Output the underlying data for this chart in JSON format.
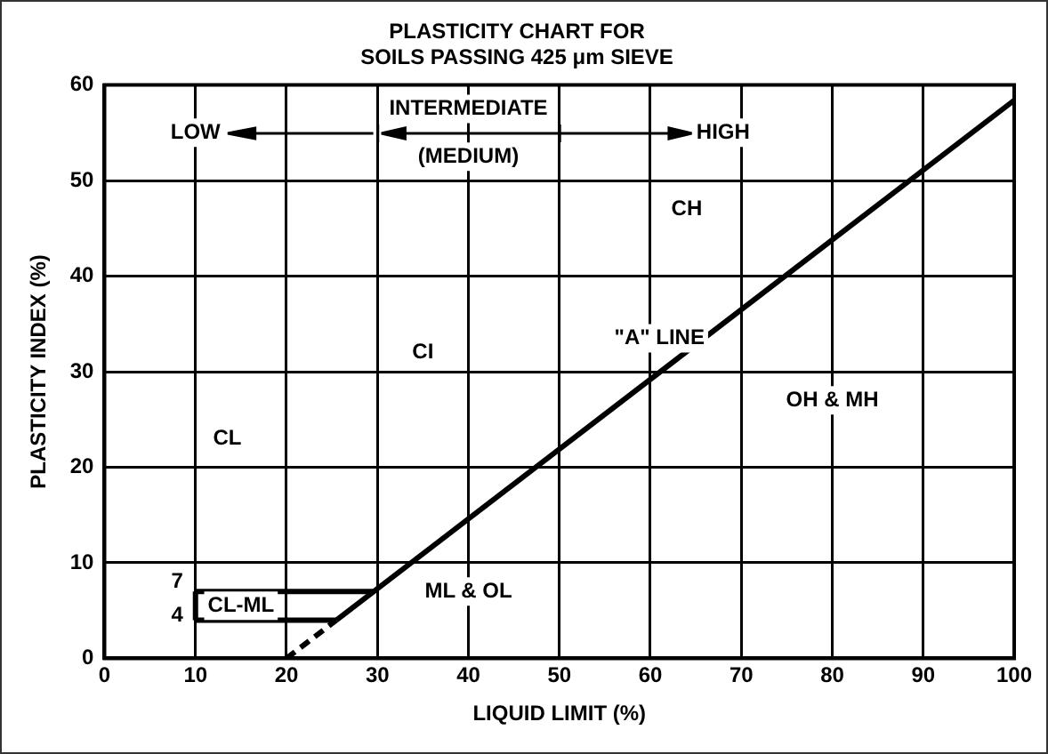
{
  "chart_data": {
    "type": "line",
    "title": "PLASTICITY CHART FOR\nSOILS PASSING 425 μm SIEVE",
    "xlabel": "LIQUID LIMIT (%)",
    "ylabel": "PLASTICITY INDEX (%)",
    "xlim": [
      0,
      100
    ],
    "xticks": [
      0,
      10,
      20,
      30,
      40,
      50,
      60,
      70,
      80,
      90,
      100
    ],
    "ylim": [
      0,
      60
    ],
    "yticks": [
      0,
      10,
      20,
      30,
      40,
      50,
      60
    ],
    "grid": true,
    "legend": false,
    "marker": "none",
    "series": [
      {
        "color": "#000000",
        "x": [
          20,
          25.5
        ],
        "values": [
          0,
          4
        ],
        "line_style": "dashed"
      },
      {
        "color": "#000000",
        "x": [
          25.5,
          100
        ],
        "values": [
          4,
          58.4
        ],
        "line_style": "solid"
      },
      {
        "color": "#000000",
        "x": [
          10,
          25.5
        ],
        "values": [
          4,
          4
        ],
        "line_style": "solid"
      },
      {
        "color": "#000000",
        "x": [
          10,
          29.6
        ],
        "values": [
          7,
          7
        ],
        "line_style": "solid"
      },
      {
        "color": "#000000",
        "x": [
          10,
          10
        ],
        "values": [
          4,
          7
        ],
        "line_style": "solid"
      }
    ],
    "annotations": [
      "LOW",
      "INTERMEDIATE",
      "(MEDIUM)",
      "HIGH",
      "CL",
      "CI",
      "CH",
      "OH & MH",
      "ML & OL",
      "CL-ML",
      "7",
      "4",
      "\"A\" LINE"
    ]
  }
}
